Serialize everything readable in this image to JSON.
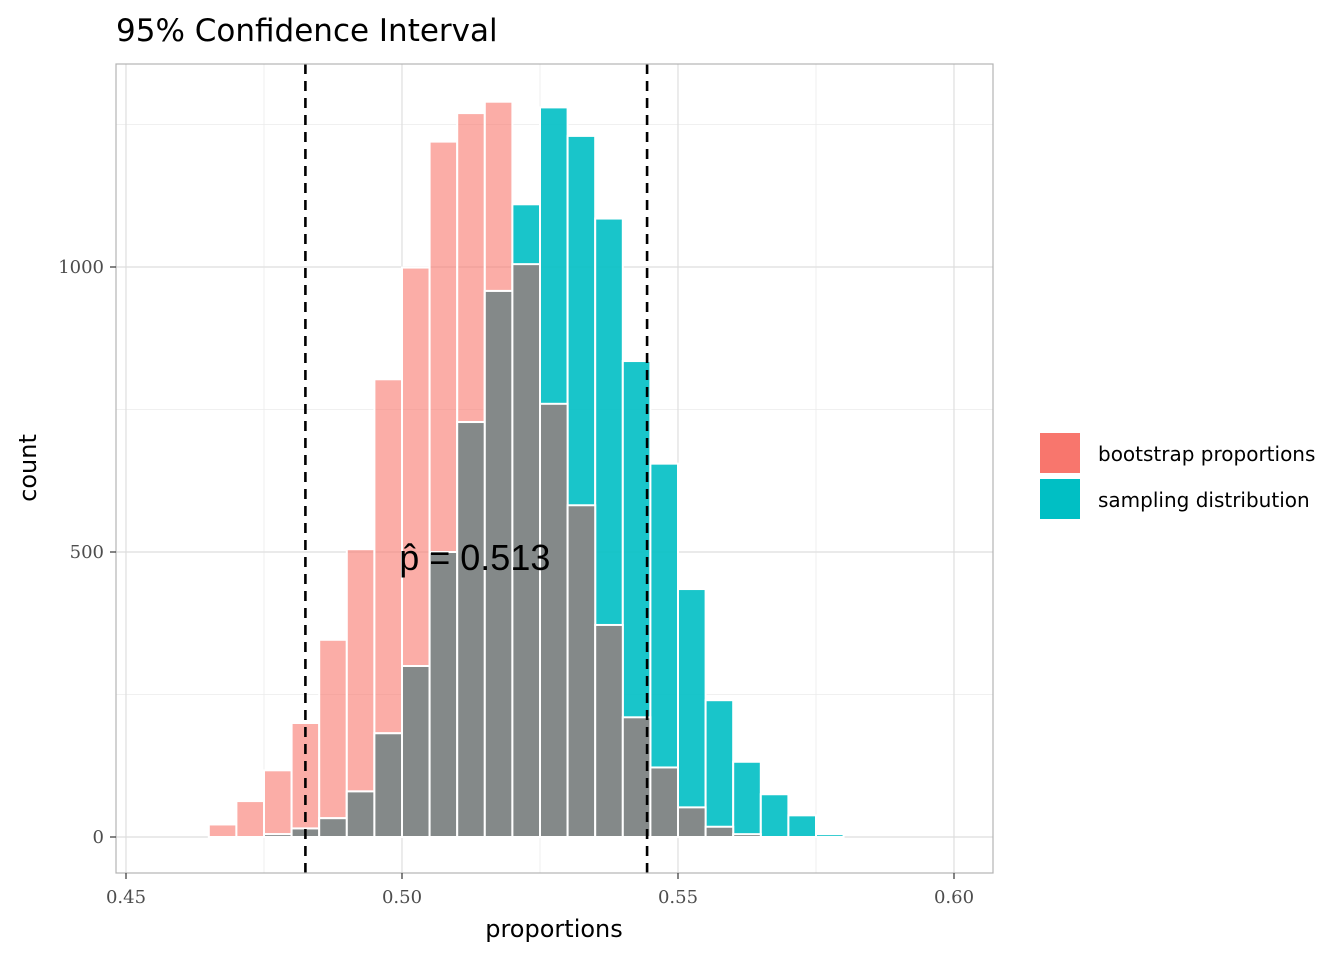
{
  "chart_data": {
    "type": "bar",
    "title": "95% Confidence Interval",
    "xlabel": "proportions",
    "ylabel": "count",
    "xlim": [
      0.45,
      0.6
    ],
    "ylim": [
      0,
      1300
    ],
    "xticks": [
      0.45,
      0.5,
      0.55,
      0.6
    ],
    "xtick_labels": [
      "0.45",
      "0.50",
      "0.55",
      "0.60"
    ],
    "yticks": [
      0,
      500,
      1000
    ],
    "ytick_labels": [
      "0",
      "500",
      "1000"
    ],
    "grid": true,
    "legend": "right",
    "series": [
      {
        "name": "bootstrap proportions",
        "color": "#F8766D",
        "alpha": 0.6,
        "bins": [
          {
            "x": 0.4675,
            "count": 22
          },
          {
            "x": 0.4725,
            "count": 63
          },
          {
            "x": 0.4775,
            "count": 117
          },
          {
            "x": 0.4825,
            "count": 200
          },
          {
            "x": 0.4875,
            "count": 346
          },
          {
            "x": 0.4925,
            "count": 505
          },
          {
            "x": 0.4975,
            "count": 803
          },
          {
            "x": 0.5025,
            "count": 999
          },
          {
            "x": 0.5075,
            "count": 1220
          },
          {
            "x": 0.5125,
            "count": 1270
          },
          {
            "x": 0.5175,
            "count": 1290
          },
          {
            "x": 0.5225,
            "count": 1005
          },
          {
            "x": 0.5275,
            "count": 760
          },
          {
            "x": 0.5325,
            "count": 582
          },
          {
            "x": 0.5375,
            "count": 372
          },
          {
            "x": 0.5425,
            "count": 210
          },
          {
            "x": 0.5475,
            "count": 122
          },
          {
            "x": 0.5525,
            "count": 52
          },
          {
            "x": 0.5575,
            "count": 18
          },
          {
            "x": 0.5625,
            "count": 5
          }
        ]
      },
      {
        "name": "sampling distribution",
        "color": "#00BFC4",
        "alpha": 0.9,
        "bins": [
          {
            "x": 0.4775,
            "count": 5
          },
          {
            "x": 0.4825,
            "count": 15
          },
          {
            "x": 0.4875,
            "count": 33
          },
          {
            "x": 0.4925,
            "count": 80
          },
          {
            "x": 0.4975,
            "count": 182
          },
          {
            "x": 0.5025,
            "count": 300
          },
          {
            "x": 0.5075,
            "count": 500
          },
          {
            "x": 0.5125,
            "count": 728
          },
          {
            "x": 0.5175,
            "count": 958
          },
          {
            "x": 0.5225,
            "count": 1110
          },
          {
            "x": 0.5275,
            "count": 1280
          },
          {
            "x": 0.5325,
            "count": 1230
          },
          {
            "x": 0.5375,
            "count": 1085
          },
          {
            "x": 0.5425,
            "count": 835
          },
          {
            "x": 0.5475,
            "count": 655
          },
          {
            "x": 0.5525,
            "count": 435
          },
          {
            "x": 0.5575,
            "count": 240
          },
          {
            "x": 0.5625,
            "count": 132
          },
          {
            "x": 0.5675,
            "count": 75
          },
          {
            "x": 0.5725,
            "count": 38
          },
          {
            "x": 0.5775,
            "count": 5
          }
        ]
      }
    ],
    "overlap_color": "#848989",
    "vlines": [
      0.4825,
      0.5444
    ],
    "annotation": {
      "text": "p̂ = 0.513",
      "x": 0.4995,
      "y": 500
    }
  }
}
